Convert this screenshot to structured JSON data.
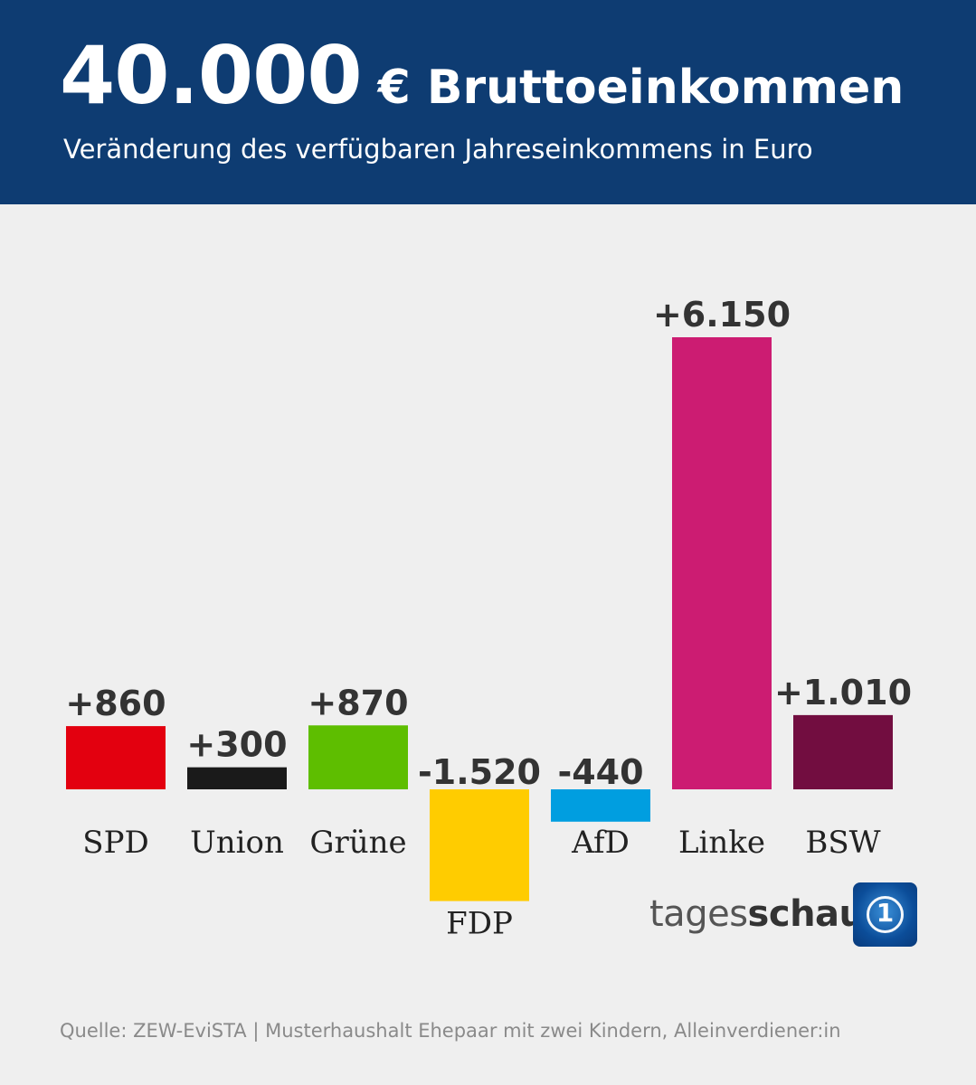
{
  "header": {
    "title_number": "40.000",
    "title_rest": "€ Bruttoeinkommen",
    "subtitle": "Veränderung des verfügbaren Jahreseinkommens in Euro"
  },
  "chart_data": {
    "type": "bar",
    "title": "40.000 € Bruttoeinkommen",
    "subtitle": "Veränderung des verfügbaren Jahreseinkommens in Euro",
    "categories": [
      "SPD",
      "Union",
      "Grüne",
      "FDP",
      "AfD",
      "Linke",
      "BSW"
    ],
    "values": [
      860,
      300,
      870,
      -1520,
      -440,
      6150,
      1010
    ],
    "value_labels": [
      "+860",
      "+300",
      "+870",
      "-1.520",
      "-440",
      "+6.150",
      "+1.010"
    ],
    "colors": [
      "#e3000f",
      "#1a1a1a",
      "#5ebe00",
      "#ffcc00",
      "#009ee0",
      "#cc1c72",
      "#720d40"
    ],
    "ylim": [
      -1520,
      6150
    ],
    "xlabel": "",
    "ylabel": "",
    "grid": false
  },
  "logo": {
    "text_light": "tages",
    "text_bold": "schau",
    "badge_glyph": "1",
    "icon": "tagesschau-logo-icon"
  },
  "source": "Quelle: ZEW-EviSTA | Musterhaushalt Ehepaar mit zwei Kindern, Alleinverdiener:in"
}
